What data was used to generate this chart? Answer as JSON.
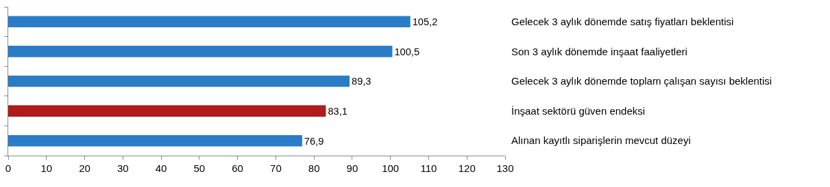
{
  "chart_data": {
    "type": "bar",
    "orientation": "horizontal",
    "categories": [
      "Gelecek 3 aylık dönemde satış fiyatları beklentisi",
      "Son 3 aylık dönemde inşaat faaliyetleri",
      "Gelecek 3 aylık dönemde toplam çalışan sayısı beklentisi",
      "İnşaat sektörü güven endeksi",
      "Alınan kayıtlı siparişlerin mevcut düzeyi"
    ],
    "values": [
      105.2,
      100.5,
      89.3,
      83.1,
      76.9
    ],
    "value_labels": [
      "105,2",
      "100,5",
      "89,3",
      "83,1",
      "76,9"
    ],
    "colors": [
      "#2b7cc6",
      "#2b7cc6",
      "#2b7cc6",
      "#b01b1b",
      "#2b7cc6"
    ],
    "xlim": [
      0,
      130
    ],
    "xticks": [
      0,
      10,
      20,
      30,
      40,
      50,
      60,
      70,
      80,
      90,
      100,
      110,
      120,
      130
    ],
    "grid": false
  }
}
